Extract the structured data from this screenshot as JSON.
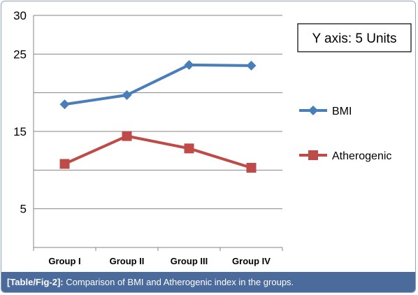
{
  "chart_data": {
    "type": "line",
    "categories": [
      "Group I",
      "Group II",
      "Group III",
      "Group IV"
    ],
    "series": [
      {
        "name": "BMI",
        "values": [
          18.5,
          19.7,
          23.6,
          23.5
        ],
        "color": "#4a7ebb",
        "marker": "diamond"
      },
      {
        "name": "Atherogenic",
        "values": [
          10.8,
          14.4,
          12.8,
          10.3
        ],
        "color": "#be4b48",
        "marker": "square"
      }
    ],
    "yticks": [
      {
        "value": 30,
        "label": "30"
      },
      {
        "value": 25,
        "label": "25"
      },
      {
        "value": 20,
        "label": ""
      },
      {
        "value": 15,
        "label": "15"
      },
      {
        "value": 10,
        "label": ""
      },
      {
        "value": 5,
        "label": "5"
      },
      {
        "value": 0,
        "label": ""
      }
    ],
    "ylim": [
      0,
      30
    ],
    "grid": true,
    "legend_position": "right",
    "annotation": "Y axis: 5 Units"
  },
  "caption": {
    "lead": "[Table/Fig-2]:",
    "text": " Comparison of BMI and Atherogenic index in the groups."
  }
}
